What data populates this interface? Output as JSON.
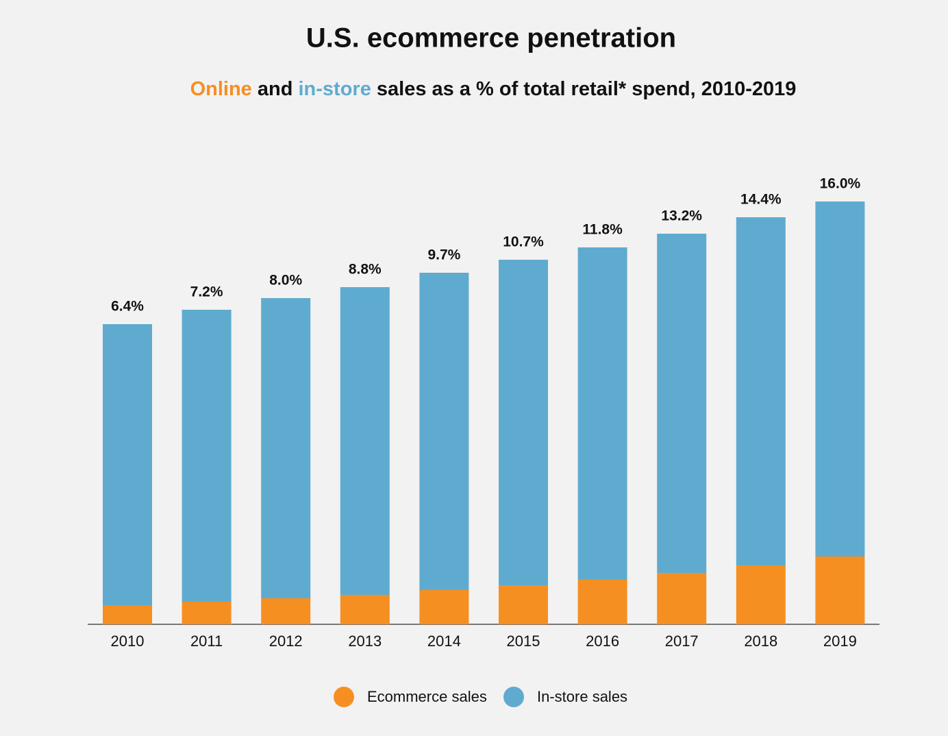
{
  "chart_data": {
    "type": "stacked_bar",
    "title": "U.S. ecommerce penetration",
    "subtitle": [
      {
        "text": "Online",
        "color": "#f68f22"
      },
      {
        "text": "and",
        "color": "#111111"
      },
      {
        "text": "in-store",
        "color": "#5fabcf"
      },
      {
        "text": "sales as a % of total retail* spend, 2010-2019",
        "color": "#111111"
      }
    ],
    "categories": [
      "2010",
      "2011",
      "2012",
      "2013",
      "2014",
      "2015",
      "2016",
      "2017",
      "2018",
      "2019"
    ],
    "series": [
      {
        "name": "Ecommerce sales",
        "color": "#f68f22",
        "values": [
          28,
          33,
          38,
          43,
          50,
          57,
          65,
          75,
          86,
          99
        ]
      },
      {
        "name": "In-store sales",
        "color": "#5fabcf",
        "values": [
          410,
          426,
          438,
          449,
          463,
          475,
          485,
          495,
          508,
          518
        ]
      }
    ],
    "share_labels": [
      "6.4%",
      "7.2%",
      "8.0%",
      "8.8%",
      "9.7%",
      "10.7%",
      "11.8%",
      "13.2%",
      "14.4%",
      "16.0%"
    ],
    "ylim": [
      0,
      700
    ]
  }
}
